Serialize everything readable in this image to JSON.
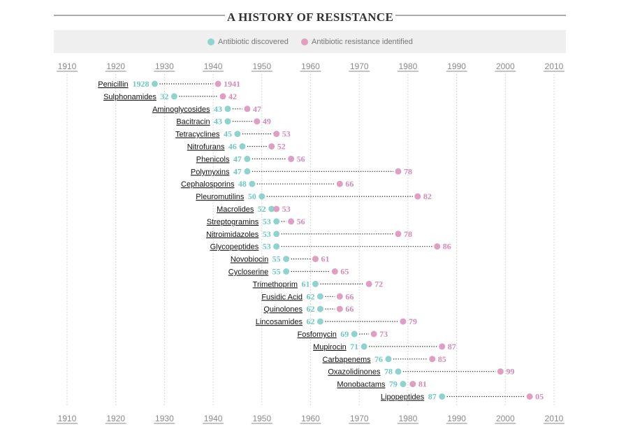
{
  "chart_data": {
    "type": "scatter",
    "title": "A HISTORY OF RESISTANCE",
    "legend": {
      "placement": "top-center",
      "items": [
        {
          "label": "Antibiotic discovered",
          "color": "#8fd3cf"
        },
        {
          "label": "Antibiotic resistance identified",
          "color": "#de9fc2"
        }
      ]
    },
    "x_ticks": [
      "1910",
      "1920",
      "1930",
      "1940",
      "1950",
      "1960",
      "1970",
      "1980",
      "1990",
      "2000",
      "2010"
    ],
    "xlim": [
      1910,
      2010
    ],
    "grid": "vertical dotted",
    "colors": {
      "discovered": "#8fd3cf",
      "resistance": "#de9fc2",
      "discovered_text": "#6ec8c2",
      "resistance_text": "#d48bb5",
      "legend_band": "#efefef"
    },
    "series": [
      {
        "name": "Antibiotic discovered",
        "key": "discovered"
      },
      {
        "name": "Antibiotic resistance identified",
        "key": "resistance"
      }
    ],
    "rows": [
      {
        "name": "Penicillin",
        "discovered": 1928,
        "resistance": 1941,
        "discovered_label": "1928",
        "resistance_label": "1941"
      },
      {
        "name": "Sulphonamides",
        "discovered": 1932,
        "resistance": 1942,
        "discovered_label": "32",
        "resistance_label": "42"
      },
      {
        "name": "Aminoglycosides",
        "discovered": 1943,
        "resistance": 1947,
        "discovered_label": "43",
        "resistance_label": "47"
      },
      {
        "name": "Bacitracin",
        "discovered": 1943,
        "resistance": 1949,
        "discovered_label": "43",
        "resistance_label": "49"
      },
      {
        "name": "Tetracyclines",
        "discovered": 1945,
        "resistance": 1953,
        "discovered_label": "45",
        "resistance_label": "53"
      },
      {
        "name": "Nitrofurans",
        "discovered": 1946,
        "resistance": 1952,
        "discovered_label": "46",
        "resistance_label": "52"
      },
      {
        "name": "Phenicols",
        "discovered": 1947,
        "resistance": 1956,
        "discovered_label": "47",
        "resistance_label": "56"
      },
      {
        "name": "Polymyxins",
        "discovered": 1947,
        "resistance": 1978,
        "discovered_label": "47",
        "resistance_label": "78"
      },
      {
        "name": "Cephalosporins",
        "discovered": 1948,
        "resistance": 1966,
        "discovered_label": "48",
        "resistance_label": "66"
      },
      {
        "name": "Pleuromutilins",
        "discovered": 1950,
        "resistance": 1982,
        "discovered_label": "50",
        "resistance_label": "82"
      },
      {
        "name": "Macrolides",
        "discovered": 1952,
        "resistance": 1953,
        "discovered_label": "52",
        "resistance_label": "53"
      },
      {
        "name": "Streptogramins",
        "discovered": 1953,
        "resistance": 1956,
        "discovered_label": "53",
        "resistance_label": "56"
      },
      {
        "name": "Nitroimidazoles",
        "discovered": 1953,
        "resistance": 1978,
        "discovered_label": "53",
        "resistance_label": "78"
      },
      {
        "name": "Glycopeptides",
        "discovered": 1953,
        "resistance": 1986,
        "discovered_label": "53",
        "resistance_label": "86"
      },
      {
        "name": "Novobiocin",
        "discovered": 1955,
        "resistance": 1961,
        "discovered_label": "55",
        "resistance_label": "61"
      },
      {
        "name": "Cycloserine",
        "discovered": 1955,
        "resistance": 1965,
        "discovered_label": "55",
        "resistance_label": "65"
      },
      {
        "name": "Trimethoprim",
        "discovered": 1961,
        "resistance": 1972,
        "discovered_label": "61",
        "resistance_label": "72"
      },
      {
        "name": "Fusidic Acid",
        "discovered": 1962,
        "resistance": 1966,
        "discovered_label": "62",
        "resistance_label": "66"
      },
      {
        "name": "Quinolones",
        "discovered": 1962,
        "resistance": 1966,
        "discovered_label": "62",
        "resistance_label": "66"
      },
      {
        "name": "Lincosamides",
        "discovered": 1962,
        "resistance": 1979,
        "discovered_label": "62",
        "resistance_label": "79"
      },
      {
        "name": "Fosfomycin",
        "discovered": 1969,
        "resistance": 1973,
        "discovered_label": "69",
        "resistance_label": "73"
      },
      {
        "name": "Mupirocin",
        "discovered": 1971,
        "resistance": 1987,
        "discovered_label": "71",
        "resistance_label": "87"
      },
      {
        "name": "Carbapenems",
        "discovered": 1976,
        "resistance": 1985,
        "discovered_label": "76",
        "resistance_label": "85"
      },
      {
        "name": "Oxazolidinones",
        "discovered": 1978,
        "resistance": 1999,
        "discovered_label": "78",
        "resistance_label": "99"
      },
      {
        "name": "Monobactams",
        "discovered": 1979,
        "resistance": 1981,
        "discovered_label": "79",
        "resistance_label": "81"
      },
      {
        "name": "Lipopeptides",
        "discovered": 1987,
        "resistance": 2005,
        "discovered_label": "87",
        "resistance_label": "05"
      }
    ]
  }
}
